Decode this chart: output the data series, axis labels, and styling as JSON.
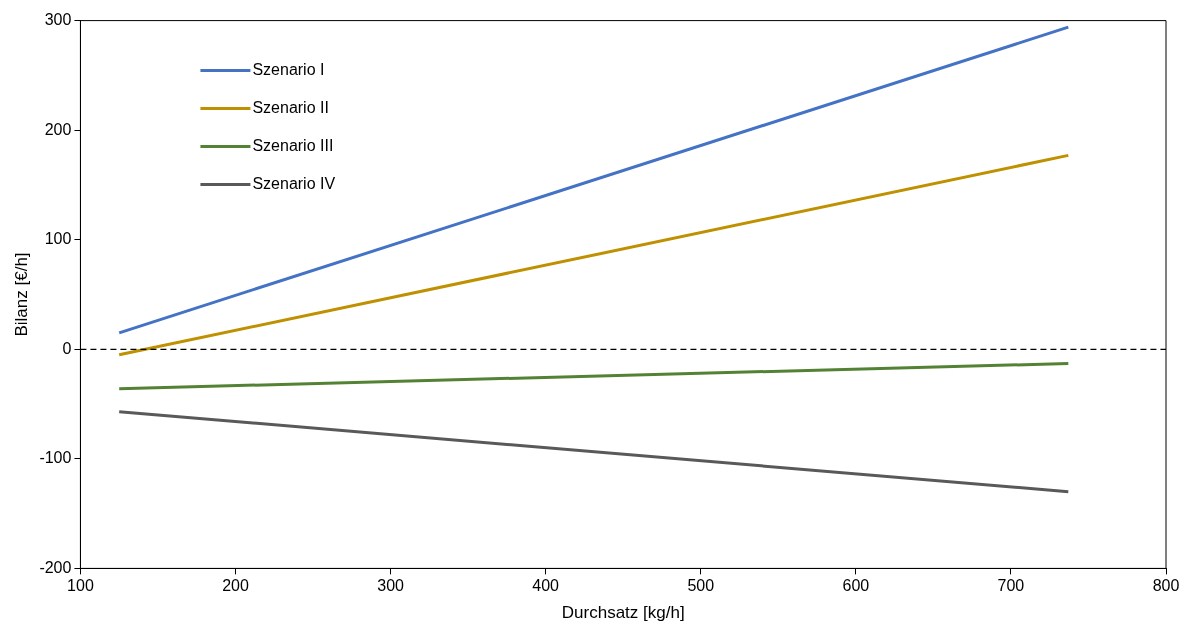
{
  "chart_data": {
    "type": "line",
    "xlabel": "Durchsatz [kg/h]",
    "ylabel": "Bilanz [€/h]",
    "x": [
      125,
      737
    ],
    "series": [
      {
        "name": "Szenario I",
        "color": "#4472c4",
        "values": [
          15,
          294
        ]
      },
      {
        "name": "Szenario II",
        "color": "#bf9000",
        "values": [
          -5,
          177
        ]
      },
      {
        "name": "Szenario III",
        "color": "#548235",
        "values": [
          -36,
          -13
        ]
      },
      {
        "name": "Szenario IV",
        "color": "#595959",
        "values": [
          -57,
          -130
        ]
      }
    ],
    "xlim": [
      100,
      800
    ],
    "xticks": [
      100,
      200,
      300,
      400,
      500,
      600,
      700,
      800
    ],
    "ylim": [
      -200,
      300
    ],
    "yticks": [
      -200,
      -100,
      0,
      100,
      200,
      300
    ],
    "ref_lines": [
      {
        "axis": "y",
        "value": 0,
        "color": "#000000",
        "line_style": "dashed"
      }
    ],
    "grid": false,
    "legend": "top left",
    "marker": "none",
    "line_style": "solid"
  }
}
